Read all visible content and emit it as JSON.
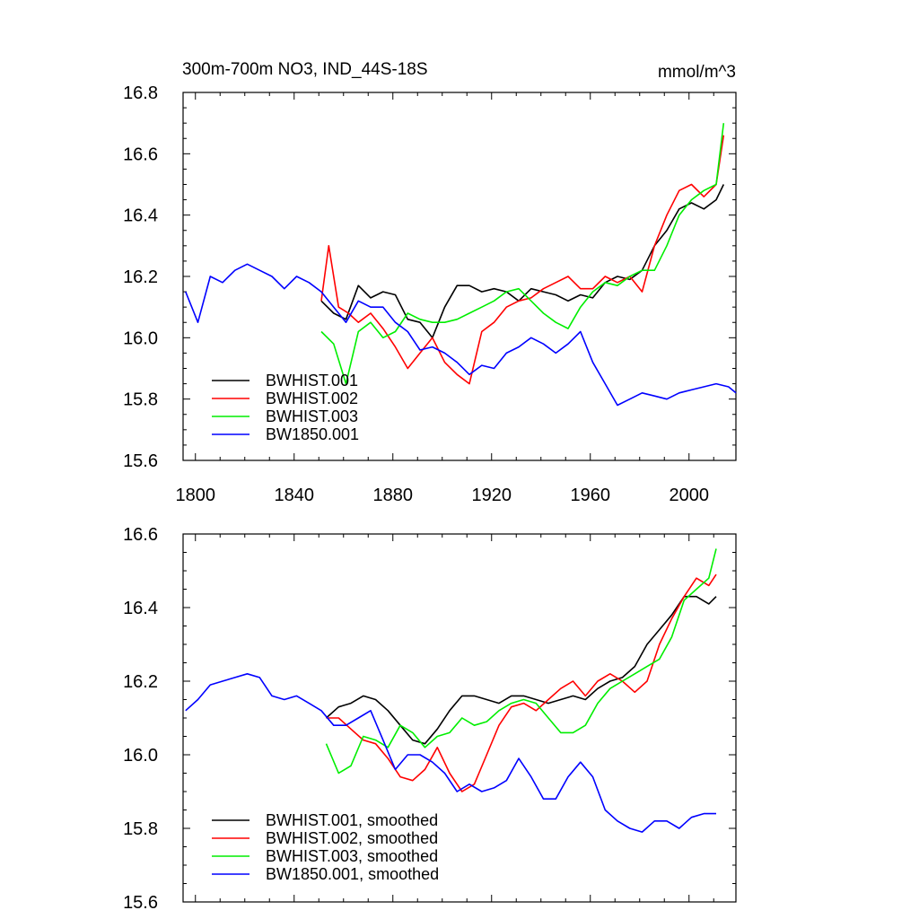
{
  "chart_data": [
    {
      "type": "line",
      "title": "300m-700m NO3, IND_44S-18S",
      "units": "mmol/m^3",
      "xlim": [
        1795,
        2019
      ],
      "ylim": [
        15.6,
        16.8
      ],
      "xticks": [
        1800,
        1840,
        1880,
        1920,
        1960,
        2000
      ],
      "xtick_labels": [
        "1800",
        "1840",
        "1880",
        "1920",
        "1960",
        "2000"
      ],
      "yticks": [
        15.6,
        15.8,
        16.0,
        16.2,
        16.4,
        16.6,
        16.8
      ],
      "ytick_labels": [
        "15.6",
        "15.8",
        "16.0",
        "16.2",
        "16.4",
        "16.6",
        "16.8"
      ],
      "legend_position": "bottom-left",
      "series": [
        {
          "name": "BWHIST.001",
          "color": "#000000",
          "x": [
            1851,
            1856,
            1861,
            1866,
            1871,
            1876,
            1881,
            1886,
            1891,
            1896,
            1901,
            1906,
            1911,
            1916,
            1921,
            1926,
            1931,
            1936,
            1941,
            1946,
            1951,
            1956,
            1961,
            1966,
            1971,
            1976,
            1981,
            1986,
            1991,
            1996,
            2001,
            2006,
            2011,
            2014
          ],
          "y": [
            16.12,
            16.08,
            16.06,
            16.17,
            16.13,
            16.15,
            16.14,
            16.06,
            16.05,
            16.0,
            16.1,
            16.17,
            16.17,
            16.15,
            16.16,
            16.15,
            16.12,
            16.16,
            16.15,
            16.14,
            16.12,
            16.14,
            16.13,
            16.18,
            16.2,
            16.19,
            16.22,
            16.3,
            16.35,
            16.42,
            16.44,
            16.42,
            16.45,
            16.5
          ]
        },
        {
          "name": "BWHIST.002",
          "color": "#ff0000",
          "x": [
            1851,
            1854,
            1858,
            1862,
            1866,
            1871,
            1876,
            1881,
            1886,
            1891,
            1896,
            1901,
            1906,
            1911,
            1916,
            1921,
            1926,
            1931,
            1936,
            1941,
            1946,
            1951,
            1956,
            1961,
            1966,
            1971,
            1976,
            1981,
            1986,
            1991,
            1996,
            2001,
            2006,
            2011,
            2014
          ],
          "y": [
            16.12,
            16.3,
            16.1,
            16.08,
            16.05,
            16.08,
            16.03,
            15.97,
            15.9,
            15.95,
            16.0,
            15.92,
            15.88,
            15.85,
            16.02,
            16.05,
            16.1,
            16.12,
            16.13,
            16.16,
            16.18,
            16.2,
            16.16,
            16.16,
            16.2,
            16.18,
            16.2,
            16.15,
            16.3,
            16.4,
            16.48,
            16.5,
            16.46,
            16.5,
            16.66
          ]
        },
        {
          "name": "BWHIST.003",
          "color": "#00ee00",
          "x": [
            1851,
            1856,
            1861,
            1866,
            1871,
            1876,
            1881,
            1886,
            1891,
            1896,
            1901,
            1906,
            1911,
            1916,
            1921,
            1926,
            1931,
            1936,
            1941,
            1946,
            1951,
            1956,
            1961,
            1966,
            1971,
            1976,
            1981,
            1986,
            1991,
            1996,
            2001,
            2006,
            2011,
            2014
          ],
          "y": [
            16.02,
            15.98,
            15.85,
            16.02,
            16.05,
            16.0,
            16.02,
            16.08,
            16.06,
            16.05,
            16.05,
            16.06,
            16.08,
            16.1,
            16.12,
            16.15,
            16.16,
            16.12,
            16.08,
            16.05,
            16.03,
            16.1,
            16.15,
            16.18,
            16.17,
            16.2,
            16.22,
            16.22,
            16.3,
            16.4,
            16.45,
            16.48,
            16.5,
            16.7
          ]
        },
        {
          "name": "BW1850.001",
          "color": "#0000ff",
          "x": [
            1796,
            1801,
            1806,
            1811,
            1816,
            1821,
            1826,
            1831,
            1836,
            1841,
            1846,
            1851,
            1856,
            1861,
            1866,
            1871,
            1876,
            1881,
            1886,
            1891,
            1896,
            1901,
            1906,
            1911,
            1916,
            1921,
            1926,
            1931,
            1936,
            1941,
            1946,
            1951,
            1956,
            1961,
            1966,
            1971,
            1976,
            1981,
            1986,
            1991,
            1996,
            2001,
            2006,
            2011,
            2016,
            2019
          ],
          "y": [
            16.15,
            16.05,
            16.2,
            16.18,
            16.22,
            16.24,
            16.22,
            16.2,
            16.16,
            16.2,
            16.18,
            16.15,
            16.1,
            16.05,
            16.12,
            16.1,
            16.1,
            16.05,
            16.02,
            15.96,
            15.97,
            15.95,
            15.92,
            15.88,
            15.91,
            15.9,
            15.95,
            15.97,
            16.0,
            15.98,
            15.95,
            15.98,
            16.02,
            15.92,
            15.85,
            15.78,
            15.8,
            15.82,
            15.81,
            15.8,
            15.82,
            15.83,
            15.84,
            15.85,
            15.84,
            15.82
          ]
        }
      ]
    },
    {
      "type": "line",
      "title": "",
      "xlim": [
        1795,
        2019
      ],
      "ylim": [
        15.6,
        16.6
      ],
      "xticks": [
        1800,
        1840,
        1880,
        1920,
        1960,
        2000
      ],
      "yticks": [
        15.6,
        15.8,
        16.0,
        16.2,
        16.4,
        16.6
      ],
      "ytick_labels": [
        "15.6",
        "15.8",
        "16.0",
        "16.2",
        "16.4",
        "16.6"
      ],
      "legend_position": "bottom-left",
      "series": [
        {
          "name": "BWHIST.001, smoothed",
          "color": "#000000",
          "x": [
            1853,
            1858,
            1863,
            1868,
            1873,
            1878,
            1883,
            1888,
            1893,
            1898,
            1903,
            1908,
            1913,
            1918,
            1923,
            1928,
            1933,
            1938,
            1943,
            1948,
            1953,
            1958,
            1963,
            1968,
            1973,
            1978,
            1983,
            1988,
            1993,
            1998,
            2003,
            2008,
            2011
          ],
          "y": [
            16.1,
            16.13,
            16.14,
            16.16,
            16.15,
            16.12,
            16.08,
            16.04,
            16.03,
            16.07,
            16.12,
            16.16,
            16.16,
            16.15,
            16.14,
            16.16,
            16.16,
            16.15,
            16.14,
            16.15,
            16.16,
            16.15,
            16.18,
            16.2,
            16.21,
            16.24,
            16.3,
            16.34,
            16.38,
            16.43,
            16.43,
            16.41,
            16.43
          ]
        },
        {
          "name": "BWHIST.002, smoothed",
          "color": "#ff0000",
          "x": [
            1853,
            1858,
            1863,
            1868,
            1873,
            1878,
            1883,
            1888,
            1893,
            1898,
            1903,
            1908,
            1913,
            1918,
            1923,
            1928,
            1933,
            1938,
            1943,
            1948,
            1953,
            1958,
            1963,
            1968,
            1973,
            1978,
            1983,
            1988,
            1993,
            1998,
            2003,
            2008,
            2011
          ],
          "y": [
            16.1,
            16.1,
            16.07,
            16.04,
            16.03,
            15.99,
            15.94,
            15.93,
            15.96,
            16.02,
            15.95,
            15.9,
            15.92,
            16.0,
            16.08,
            16.13,
            16.14,
            16.12,
            16.15,
            16.18,
            16.2,
            16.16,
            16.2,
            16.22,
            16.2,
            16.17,
            16.2,
            16.3,
            16.37,
            16.43,
            16.48,
            16.46,
            16.49
          ]
        },
        {
          "name": "BWHIST.003, smoothed",
          "color": "#00ee00",
          "x": [
            1853,
            1858,
            1863,
            1868,
            1873,
            1878,
            1883,
            1888,
            1893,
            1898,
            1903,
            1908,
            1913,
            1918,
            1923,
            1928,
            1933,
            1938,
            1943,
            1948,
            1953,
            1958,
            1963,
            1968,
            1973,
            1978,
            1983,
            1988,
            1993,
            1998,
            2003,
            2008,
            2011
          ],
          "y": [
            16.03,
            15.95,
            15.97,
            16.05,
            16.04,
            16.02,
            16.08,
            16.06,
            16.02,
            16.05,
            16.06,
            16.1,
            16.08,
            16.09,
            16.12,
            16.14,
            16.15,
            16.14,
            16.1,
            16.06,
            16.06,
            16.08,
            16.14,
            16.18,
            16.2,
            16.22,
            16.24,
            16.26,
            16.32,
            16.42,
            16.45,
            16.48,
            16.56
          ]
        },
        {
          "name": "BW1850.001, smoothed",
          "color": "#0000ff",
          "x": [
            1796,
            1801,
            1806,
            1811,
            1816,
            1821,
            1826,
            1831,
            1836,
            1841,
            1846,
            1851,
            1856,
            1861,
            1866,
            1871,
            1876,
            1881,
            1886,
            1891,
            1896,
            1901,
            1906,
            1911,
            1916,
            1921,
            1926,
            1931,
            1936,
            1941,
            1946,
            1951,
            1956,
            1961,
            1966,
            1971,
            1976,
            1981,
            1986,
            1991,
            1996,
            2001,
            2006,
            2011
          ],
          "y": [
            16.12,
            16.15,
            16.19,
            16.2,
            16.21,
            16.22,
            16.21,
            16.16,
            16.15,
            16.16,
            16.14,
            16.12,
            16.08,
            16.08,
            16.1,
            16.12,
            16.04,
            15.96,
            16.0,
            16.0,
            15.98,
            15.95,
            15.9,
            15.92,
            15.9,
            15.91,
            15.93,
            15.99,
            15.94,
            15.88,
            15.88,
            15.94,
            15.98,
            15.94,
            15.85,
            15.82,
            15.8,
            15.79,
            15.82,
            15.82,
            15.8,
            15.83,
            15.84,
            15.84
          ]
        }
      ]
    }
  ]
}
